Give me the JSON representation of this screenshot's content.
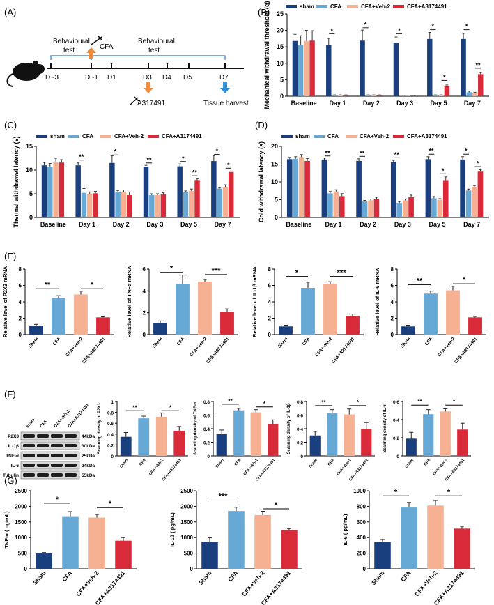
{
  "colors": {
    "sham": "#1a3f7f",
    "cfa": "#67a9d6",
    "veh": "#f5b192",
    "drug": "#d92a3a",
    "err": "#222222",
    "arrow_cfa": "#f08c3c",
    "arrow_drug": "#f08c3c",
    "arrow_harvest": "#2e8fdc"
  },
  "panel_labels": {
    "A": "(A)",
    "B": "(B)",
    "C": "(C)",
    "D": "(D)",
    "E": "(E)",
    "F": "(F)",
    "G": "(G)"
  },
  "legend": [
    "sham",
    "CFA",
    "CFA+Veh-2",
    "CFA+A3174491"
  ],
  "timeline": {
    "days": [
      "D -3",
      "D -1",
      "D1",
      "D3",
      "D4",
      "D5",
      "D7"
    ],
    "behavioural1": "Behavioural",
    "test1": "test",
    "behavioural2": "Behavioural",
    "test2": "test",
    "cfa": "CFA",
    "drug": "A317491",
    "harvest": "Tissue harvest"
  },
  "western": {
    "lanes": [
      "sham",
      "CFA",
      "CFA+Veh-2",
      "CFA+A3174491"
    ],
    "rows": [
      {
        "name": "P2X3",
        "kda": "44kDa"
      },
      {
        "name": "IL-1β",
        "kda": "30kDa"
      },
      {
        "name": "TNF-α",
        "kda": "25kDa"
      },
      {
        "name": "IL-6",
        "kda": "24kDa"
      },
      {
        "name": "Tubulin",
        "kda": "55kDa"
      }
    ]
  },
  "chart_data": [
    {
      "id": "B",
      "type": "bar",
      "ylabel": "Mechanical withdrawal threshold (g)",
      "ylim": [
        0,
        25
      ],
      "ticks": [
        0,
        5,
        10,
        15,
        20,
        25
      ],
      "categories": [
        "Baseline",
        "Day 1",
        "Day 2",
        "Day 3",
        "Day 5",
        "Day 7"
      ],
      "series": [
        {
          "name": "sham",
          "values": [
            16.8,
            15.6,
            16.9,
            16.2,
            17.4,
            17.4
          ],
          "err": [
            2.0,
            2.0,
            3.2,
            1.8,
            2.0,
            1.7
          ]
        },
        {
          "name": "CFA",
          "values": [
            15.6,
            0.3,
            0.3,
            0.2,
            0.3,
            1.2
          ],
          "err": [
            2.8,
            0.1,
            0.1,
            0.1,
            0.1,
            0.3
          ]
        },
        {
          "name": "CFA+Veh-2",
          "values": [
            16.8,
            0.3,
            0.3,
            0.2,
            0.3,
            0.9
          ],
          "err": [
            3.2,
            0.1,
            0.1,
            0.1,
            0.1,
            0.3
          ]
        },
        {
          "name": "CFA+A3174491",
          "values": [
            16.9,
            0.3,
            0.3,
            0.2,
            3.0,
            6.7
          ],
          "err": [
            3.0,
            0.1,
            0.1,
            0.1,
            0.4,
            0.5
          ]
        }
      ],
      "sig": [
        {
          "cat": 1,
          "a": 0,
          "b": 1,
          "y": 19.0,
          "t": "*"
        },
        {
          "cat": 2,
          "a": 0,
          "b": 1,
          "y": 20.8,
          "t": "*"
        },
        {
          "cat": 3,
          "a": 0,
          "b": 1,
          "y": 19.0,
          "t": "*"
        },
        {
          "cat": 4,
          "a": 0,
          "b": 1,
          "y": 20.2,
          "t": "*"
        },
        {
          "cat": 4,
          "a": 2,
          "b": 3,
          "y": 4.8,
          "t": "*"
        },
        {
          "cat": 5,
          "a": 0,
          "b": 1,
          "y": 20.2,
          "t": "*"
        },
        {
          "cat": 5,
          "a": 2,
          "b": 3,
          "y": 8.5,
          "t": "**"
        }
      ]
    },
    {
      "id": "C",
      "type": "bar",
      "ylabel": "Thermal withdrawal latency (s)",
      "ylim": [
        0,
        15
      ],
      "ticks": [
        0,
        5,
        10,
        15
      ],
      "categories": [
        "Baseline",
        "Day 1",
        "Day 2",
        "Day 3",
        "Day 5",
        "Day 7"
      ],
      "series": [
        {
          "name": "sham",
          "values": [
            11.0,
            11.0,
            11.5,
            10.6,
            10.8,
            11.9
          ],
          "err": [
            0.6,
            0.5,
            1.5,
            0.4,
            0.5,
            1.1
          ]
        },
        {
          "name": "CFA",
          "values": [
            10.6,
            5.2,
            5.3,
            4.7,
            5.3,
            6.1
          ],
          "err": [
            0.8,
            0.9,
            0.4,
            0.3,
            0.3,
            0.2
          ]
        },
        {
          "name": "CFA+Veh-2",
          "values": [
            11.6,
            5.0,
            5.4,
            4.7,
            5.6,
            6.4
          ],
          "err": [
            0.9,
            0.4,
            0.4,
            0.3,
            0.4,
            0.5
          ]
        },
        {
          "name": "CFA+A3174491",
          "values": [
            11.6,
            5.1,
            4.7,
            4.9,
            7.9,
            9.6
          ],
          "err": [
            0.6,
            0.4,
            0.7,
            0.3,
            0.3,
            0.2
          ]
        }
      ],
      "sig": [
        {
          "cat": 1,
          "a": 0,
          "b": 1,
          "y": 12.1,
          "t": "**"
        },
        {
          "cat": 2,
          "a": 0,
          "b": 1,
          "y": 13.2,
          "t": "*"
        },
        {
          "cat": 3,
          "a": 0,
          "b": 1,
          "y": 11.5,
          "t": "**"
        },
        {
          "cat": 4,
          "a": 0,
          "b": 1,
          "y": 11.8,
          "t": "*"
        },
        {
          "cat": 4,
          "a": 2,
          "b": 3,
          "y": 8.8,
          "t": "**"
        },
        {
          "cat": 5,
          "a": 0,
          "b": 1,
          "y": 13.3,
          "t": "*"
        },
        {
          "cat": 5,
          "a": 2,
          "b": 3,
          "y": 10.4,
          "t": "*"
        }
      ]
    },
    {
      "id": "D",
      "type": "bar",
      "ylabel": "Cold withdrawal latency (s)",
      "ylim": [
        0,
        20
      ],
      "ticks": [
        0,
        5,
        10,
        15,
        20
      ],
      "categories": [
        "Baseline",
        "Day 1",
        "Day 2",
        "Day 3",
        "Day 5",
        "Day 7"
      ],
      "series": [
        {
          "name": "sham",
          "values": [
            16.4,
            16.3,
            15.9,
            15.6,
            16.4,
            16.3
          ],
          "err": [
            0.5,
            0.4,
            0.6,
            0.5,
            0.7,
            0.8
          ]
        },
        {
          "name": "CFA",
          "values": [
            16.5,
            6.8,
            4.5,
            4.1,
            5.4,
            7.6
          ],
          "err": [
            0.6,
            0.5,
            0.3,
            0.4,
            0.5,
            0.4
          ]
        },
        {
          "name": "CFA+Veh-2",
          "values": [
            17.0,
            7.3,
            4.8,
            4.8,
            5.0,
            8.6
          ],
          "err": [
            0.7,
            0.5,
            0.4,
            0.4,
            0.3,
            0.4
          ]
        },
        {
          "name": "CFA+A3174491",
          "values": [
            15.9,
            6.0,
            5.1,
            5.7,
            10.5,
            12.9
          ],
          "err": [
            0.7,
            0.7,
            0.6,
            0.6,
            0.9,
            0.5
          ]
        }
      ],
      "sig": [
        {
          "cat": 1,
          "a": 0,
          "b": 1,
          "y": 17.3,
          "t": "**"
        },
        {
          "cat": 2,
          "a": 0,
          "b": 1,
          "y": 17.2,
          "t": "**"
        },
        {
          "cat": 3,
          "a": 0,
          "b": 1,
          "y": 16.8,
          "t": "**"
        },
        {
          "cat": 4,
          "a": 0,
          "b": 1,
          "y": 17.8,
          "t": "**"
        },
        {
          "cat": 4,
          "a": 2,
          "b": 3,
          "y": 12.3,
          "t": "*"
        },
        {
          "cat": 5,
          "a": 0,
          "b": 1,
          "y": 17.8,
          "t": "*"
        },
        {
          "cat": 5,
          "a": 2,
          "b": 3,
          "y": 14.3,
          "t": "*"
        }
      ]
    },
    {
      "id": "E1",
      "type": "bar",
      "ylabel": "Relative level of P2X3 mRNA",
      "ylim": [
        0,
        8
      ],
      "ticks": [
        0,
        2,
        4,
        6,
        8
      ],
      "categories": [
        "Sham",
        "CFA",
        "CFA+Veh-2",
        "CFA+A3174491"
      ],
      "values": [
        1.1,
        4.5,
        4.9,
        2.1
      ],
      "err": [
        0.15,
        0.25,
        0.4,
        0.08
      ],
      "sig": [
        {
          "a": 0,
          "b": 1,
          "y": 5.6,
          "t": "**"
        },
        {
          "a": 2,
          "b": 3,
          "y": 5.6,
          "t": "*"
        }
      ]
    },
    {
      "id": "E2",
      "type": "bar",
      "ylabel": "Relative level of TNFα mRNA",
      "ylim": [
        0,
        6
      ],
      "ticks": [
        0,
        2,
        4,
        6
      ],
      "categories": [
        "Sham",
        "CFA",
        "CFA+Veh-2",
        "CFA+A3174491"
      ],
      "values": [
        1.05,
        4.65,
        4.85,
        2.05
      ],
      "err": [
        0.2,
        0.8,
        0.2,
        0.3
      ],
      "sig": [
        {
          "a": 0,
          "b": 1,
          "y": 5.7,
          "t": "*"
        },
        {
          "a": 2,
          "b": 3,
          "y": 5.5,
          "t": "***"
        }
      ]
    },
    {
      "id": "E3",
      "type": "bar",
      "ylabel": "Relative level of IL-1β mRNA",
      "ylim": [
        0,
        8
      ],
      "ticks": [
        0,
        2,
        4,
        6,
        8
      ],
      "categories": [
        "Sham",
        "CFA",
        "CFA+Veh-2",
        "CFA+A3174491"
      ],
      "values": [
        1.0,
        5.7,
        6.2,
        2.3
      ],
      "err": [
        0.15,
        0.7,
        0.25,
        0.2
      ],
      "sig": [
        {
          "a": 0,
          "b": 1,
          "y": 7.1,
          "t": "*"
        },
        {
          "a": 2,
          "b": 3,
          "y": 7.1,
          "t": "***"
        }
      ]
    },
    {
      "id": "E4",
      "type": "bar",
      "ylabel": "Relative level of IL-6 mRNA",
      "ylim": [
        0,
        8
      ],
      "ticks": [
        0,
        2,
        4,
        6,
        8
      ],
      "categories": [
        "Sham",
        "CFA",
        "CFA+Veh-2",
        "CFA+A3174491"
      ],
      "values": [
        1.0,
        5.0,
        5.4,
        2.1
      ],
      "err": [
        0.15,
        0.3,
        0.5,
        0.12
      ],
      "sig": [
        {
          "a": 0,
          "b": 1,
          "y": 6.1,
          "t": "**"
        },
        {
          "a": 2,
          "b": 3,
          "y": 6.2,
          "t": "*"
        }
      ]
    },
    {
      "id": "F1",
      "type": "bar",
      "ylabel": "Scanning density of P2X3",
      "ylim": [
        0,
        1.0
      ],
      "ticks": [
        0,
        0.2,
        0.4,
        0.6,
        0.8,
        1.0
      ],
      "categories": [
        "Sham",
        "CFA",
        "CFA+Veh-2",
        "CFA+A3174491"
      ],
      "values": [
        0.35,
        0.69,
        0.72,
        0.46
      ],
      "err": [
        0.08,
        0.04,
        0.07,
        0.08
      ],
      "sig": [
        {
          "a": 0,
          "b": 1,
          "y": 0.83,
          "t": "**"
        },
        {
          "a": 2,
          "b": 3,
          "y": 0.83,
          "t": "*"
        }
      ]
    },
    {
      "id": "F2",
      "type": "bar",
      "ylabel": "Scanning density of TNF-α",
      "ylim": [
        0,
        0.8
      ],
      "ticks": [
        0,
        0.2,
        0.4,
        0.6,
        0.8
      ],
      "categories": [
        "Sham",
        "CFA",
        "CFA+Veh-2",
        "CFA+A3174491"
      ],
      "values": [
        0.32,
        0.67,
        0.64,
        0.47
      ],
      "err": [
        0.06,
        0.03,
        0.04,
        0.06
      ],
      "sig": [
        {
          "a": 0,
          "b": 1,
          "y": 0.76,
          "t": "**"
        },
        {
          "a": 2,
          "b": 3,
          "y": 0.72,
          "t": "*"
        }
      ]
    },
    {
      "id": "F3",
      "type": "bar",
      "ylabel": "Scanning density of IL-1β",
      "ylim": [
        0,
        0.8
      ],
      "ticks": [
        0,
        0.2,
        0.4,
        0.6,
        0.8
      ],
      "categories": [
        "Sham",
        "CFA",
        "CFA+Veh-2",
        "CFA+A3174491"
      ],
      "values": [
        0.3,
        0.63,
        0.61,
        0.4
      ],
      "err": [
        0.06,
        0.05,
        0.08,
        0.09
      ],
      "sig": [
        {
          "a": 0,
          "b": 1,
          "y": 0.74,
          "t": "**"
        },
        {
          "a": 2,
          "b": 3,
          "y": 0.74,
          "t": "*"
        }
      ]
    },
    {
      "id": "F4",
      "type": "bar",
      "ylabel": "Scanning density of IL-6",
      "ylim": [
        0,
        0.6
      ],
      "ticks": [
        0,
        0.2,
        0.4,
        0.6
      ],
      "categories": [
        "Sham",
        "CFA",
        "CFA+Veh-2",
        "CFA+A3174491"
      ],
      "values": [
        0.19,
        0.46,
        0.49,
        0.29
      ],
      "err": [
        0.07,
        0.05,
        0.03,
        0.07
      ],
      "sig": [
        {
          "a": 0,
          "b": 1,
          "y": 0.56,
          "t": "**"
        },
        {
          "a": 2,
          "b": 3,
          "y": 0.56,
          "t": "*"
        }
      ]
    },
    {
      "id": "G1",
      "type": "bar",
      "ylabel": "TNF-α ( pg/mL)",
      "ylim": [
        0,
        2500
      ],
      "ticks": [
        0,
        500,
        1000,
        1500,
        2000,
        2500
      ],
      "categories": [
        "Sham",
        "CFA",
        "CFA+Veh-2",
        "CFA+A3174491"
      ],
      "values": [
        490,
        1660,
        1640,
        900
      ],
      "err": [
        30,
        170,
        100,
        100
      ],
      "sig": [
        {
          "a": 0,
          "b": 1,
          "y": 2100,
          "t": "*"
        },
        {
          "a": 2,
          "b": 3,
          "y": 1960,
          "t": "*"
        }
      ]
    },
    {
      "id": "G2",
      "type": "bar",
      "ylabel": "IL-1β ( pg/mL)",
      "ylim": [
        0,
        2500
      ],
      "ticks": [
        0,
        500,
        1000,
        1500,
        2000,
        2500
      ],
      "categories": [
        "Sham",
        "CFA",
        "CFA+Veh-2",
        "CFA+A3174491"
      ],
      "values": [
        870,
        1850,
        1720,
        1240
      ],
      "err": [
        120,
        120,
        120,
        50
      ],
      "sig": [
        {
          "a": 0,
          "b": 1,
          "y": 2200,
          "t": "***"
        },
        {
          "a": 2,
          "b": 3,
          "y": 1920,
          "t": "*"
        }
      ]
    },
    {
      "id": "G3",
      "type": "bar",
      "ylabel": "IL-6 ( pg/mL)",
      "ylim": [
        0,
        1000
      ],
      "ticks": [
        0,
        200,
        400,
        600,
        800,
        1000
      ],
      "categories": [
        "Sham",
        "CFA",
        "CFA+Veh-2",
        "CFA+A3174491"
      ],
      "values": [
        345,
        785,
        810,
        515
      ],
      "err": [
        30,
        65,
        65,
        30
      ],
      "sig": [
        {
          "a": 0,
          "b": 1,
          "y": 935,
          "t": "*"
        },
        {
          "a": 2,
          "b": 3,
          "y": 935,
          "t": "*"
        }
      ]
    }
  ]
}
